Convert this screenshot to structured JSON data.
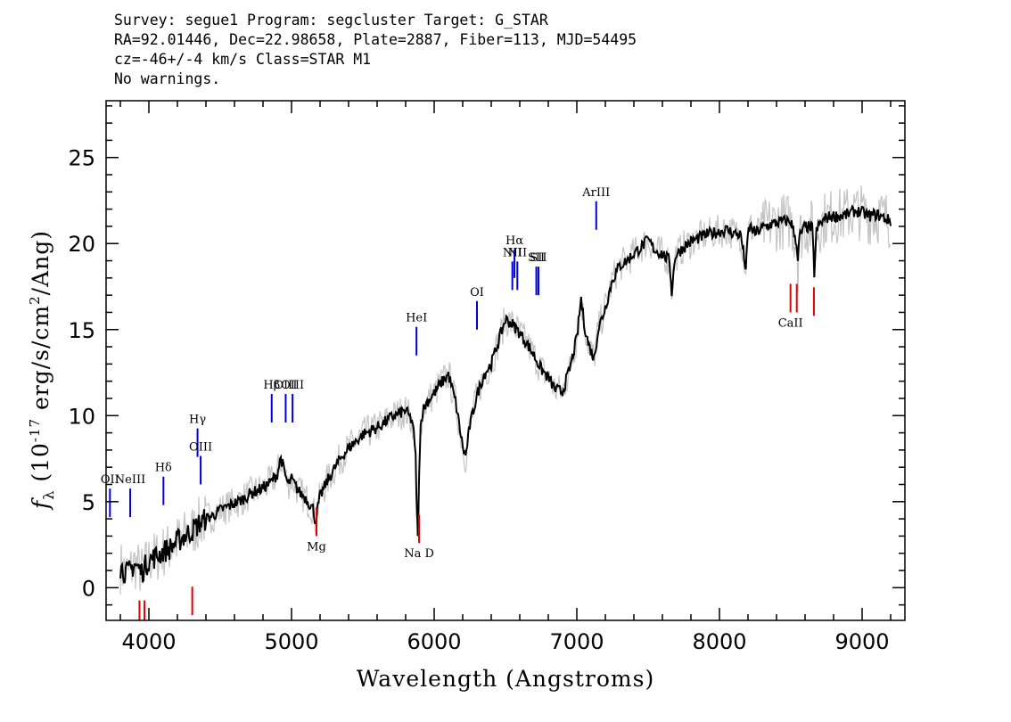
{
  "header": {
    "line1": "Survey: segue1 Program: segcluster Target: G_STAR",
    "line2": "RA=92.01446, Dec=22.98658, Plate=2887, Fiber=113, MJD=54495",
    "line3": "cz=-46+/-4 km/s Class=STAR M1",
    "line4": "No warnings."
  },
  "chart_data": {
    "type": "line",
    "xlabel": "Wavelength (Angstroms)",
    "ylabel": "f_λ (10^-17 erg/s/cm^2/Ang)",
    "xlim": [
      3700,
      9300
    ],
    "ylim": [
      -1.9,
      28.3
    ],
    "xticks": [
      4000,
      5000,
      6000,
      7000,
      8000,
      9000
    ],
    "yticks": [
      0,
      5,
      10,
      15,
      20,
      25
    ],
    "grid": false,
    "series": [
      {
        "color": "#000000",
        "x": [
          3800,
          3850,
          3900,
          3950,
          4000,
          4050,
          4100,
          4150,
          4200,
          4250,
          4300,
          4350,
          4400,
          4450,
          4500,
          4550,
          4600,
          4650,
          4700,
          4750,
          4800,
          4850,
          4900,
          4925,
          4950,
          4975,
          5000,
          5050,
          5100,
          5150,
          5170,
          5185,
          5200,
          5250,
          5300,
          5350,
          5400,
          5450,
          5500,
          5550,
          5600,
          5650,
          5700,
          5750,
          5800,
          5850,
          5870,
          5880,
          5885,
          5890,
          5895,
          5905,
          5920,
          5950,
          6000,
          6050,
          6100,
          6150,
          6200,
          6220,
          6250,
          6300,
          6350,
          6400,
          6450,
          6500,
          6550,
          6600,
          6650,
          6700,
          6750,
          6800,
          6850,
          6900,
          6950,
          7000,
          7030,
          7050,
          7080,
          7120,
          7150,
          7200,
          7250,
          7300,
          7350,
          7400,
          7450,
          7500,
          7550,
          7600,
          7650,
          7665,
          7690,
          7750,
          7800,
          7850,
          7900,
          7950,
          8000,
          8050,
          8100,
          8150,
          8185,
          8200,
          8215,
          8250,
          8300,
          8350,
          8400,
          8450,
          8500,
          8540,
          8550,
          8560,
          8600,
          8650,
          8665,
          8680,
          8700,
          8750,
          8800,
          8850,
          8900,
          8950,
          9000,
          9050,
          9100,
          9150,
          9200
        ],
        "y": [
          1.2,
          0.8,
          1.4,
          0.9,
          1.6,
          1.8,
          2.1,
          2.3,
          2.7,
          3.0,
          3.3,
          3.7,
          4.0,
          4.2,
          4.5,
          4.7,
          4.9,
          5.1,
          5.4,
          5.6,
          5.8,
          6.1,
          6.6,
          7.6,
          6.7,
          6.0,
          6.3,
          5.6,
          5.2,
          4.6,
          3.8,
          4.7,
          5.3,
          6.2,
          6.9,
          7.6,
          8.1,
          8.5,
          8.9,
          9.1,
          9.3,
          9.6,
          9.9,
          10.1,
          10.3,
          9.6,
          7.5,
          4.0,
          3.3,
          4.2,
          7.0,
          9.4,
          10.3,
          10.8,
          11.3,
          11.9,
          12.4,
          10.8,
          8.2,
          7.6,
          9.4,
          11.2,
          12.4,
          13.0,
          14.3,
          15.6,
          15.3,
          14.8,
          14.2,
          13.5,
          12.7,
          12.2,
          11.5,
          11.4,
          12.7,
          14.5,
          16.8,
          15.4,
          14.2,
          13.3,
          15.0,
          16.3,
          17.9,
          18.7,
          19.0,
          19.4,
          19.8,
          20.2,
          19.6,
          19.4,
          19.0,
          17.2,
          19.3,
          19.8,
          20.1,
          20.3,
          20.5,
          20.6,
          20.7,
          20.8,
          20.6,
          20.5,
          18.5,
          20.6,
          21.0,
          20.6,
          20.9,
          21.1,
          21.2,
          21.3,
          21.3,
          20.1,
          18.8,
          20.4,
          21.0,
          20.9,
          18.3,
          20.7,
          21.1,
          21.5,
          21.6,
          21.6,
          21.7,
          21.9,
          21.8,
          21.6,
          21.7,
          21.5,
          21.3
        ]
      }
    ],
    "line_markers": [
      {
        "label": "OII",
        "x": 3727,
        "y": 4.1,
        "color": "blue"
      },
      {
        "label": "NeIII",
        "x": 3869,
        "y": 4.1,
        "color": "blue"
      },
      {
        "label": "Hδ",
        "x": 4102,
        "y": 4.8,
        "color": "blue"
      },
      {
        "label": "Hγ",
        "x": 4341,
        "y": 7.6,
        "color": "blue"
      },
      {
        "label": "OIII",
        "x": 4363,
        "y": 6.0,
        "color": "blue"
      },
      {
        "label": "Hβ",
        "x": 4861,
        "y": 9.6,
        "color": "blue"
      },
      {
        "label": "OIII",
        "x": 4959,
        "y": 9.6,
        "color": "blue"
      },
      {
        "label": "OIII",
        "x": 5007,
        "y": 9.6,
        "color": "blue"
      },
      {
        "label": "HeI",
        "x": 5876,
        "y": 13.5,
        "color": "blue"
      },
      {
        "label": "OI",
        "x": 6300,
        "y": 15.0,
        "color": "blue"
      },
      {
        "label": "NII",
        "x": 6548,
        "y": 17.3,
        "color": "blue"
      },
      {
        "label": "Hα",
        "x": 6563,
        "y": 18.0,
        "color": "blue"
      },
      {
        "label": "NII",
        "x": 6583,
        "y": 17.3,
        "color": "blue"
      },
      {
        "label": "SII",
        "x": 6716,
        "y": 17.0,
        "color": "blue"
      },
      {
        "label": "SII",
        "x": 6731,
        "y": 17.0,
        "color": "blue"
      },
      {
        "label": "ArIII",
        "x": 7136,
        "y": 20.8,
        "color": "blue"
      },
      {
        "label": "",
        "x": 3934,
        "y": -2.4,
        "color": "red"
      },
      {
        "label": "",
        "x": 3969,
        "y": -2.4,
        "color": "red"
      },
      {
        "label": "",
        "x": 4304,
        "y": -1.6,
        "color": "red"
      },
      {
        "label": "Mg",
        "x": 5175,
        "y": 3.0,
        "color": "red"
      },
      {
        "label": "Na D",
        "x": 5894,
        "y": 2.6,
        "color": "red"
      },
      {
        "label": "CaII",
        "x": 8498,
        "y": 16.0,
        "color": "red"
      },
      {
        "label": "",
        "x": 8542,
        "y": 16.0,
        "color": "red"
      },
      {
        "label": "",
        "x": 8662,
        "y": 15.8,
        "color": "red"
      }
    ]
  }
}
